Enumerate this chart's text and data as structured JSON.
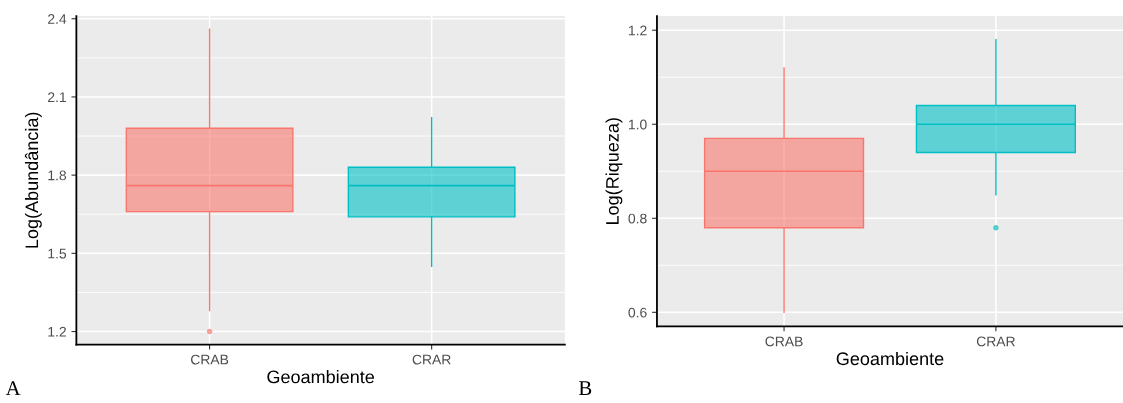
{
  "chart_data": [
    {
      "type": "box",
      "xlabel": "Geoambiente",
      "ylabel": "Log(Abundância)",
      "categories": [
        "CRAB",
        "CRAR"
      ],
      "colors": [
        "#f8766d",
        "#00bfc4"
      ],
      "ylim": [
        1.15,
        2.41
      ],
      "yticks": [
        1.2,
        1.5,
        1.8,
        2.1,
        2.4
      ],
      "grid": true,
      "annotations": [
        "A"
      ],
      "boxes": [
        {
          "low": 1.28,
          "q1": 1.66,
          "median": 1.76,
          "q3": 1.98,
          "high": 2.36,
          "outliers": [
            1.2
          ]
        },
        {
          "low": 1.45,
          "q1": 1.64,
          "median": 1.76,
          "q3": 1.83,
          "high": 2.02
        }
      ]
    },
    {
      "type": "box",
      "xlabel": "Geoambiente",
      "ylabel": "Log(Riqueza)",
      "categories": [
        "CRAB",
        "CRAR"
      ],
      "colors": [
        "#f8766d",
        "#00bfc4"
      ],
      "ylim": [
        0.57,
        1.23
      ],
      "yticks": [
        0.6,
        0.8,
        {
          "value": 1.0,
          "label": "1.0"
        },
        1.2
      ],
      "grid": true,
      "annotations": [
        "B"
      ],
      "boxes": [
        {
          "low": 0.6,
          "q1": 0.78,
          "median": 0.9,
          "q3": 0.97,
          "high": 1.12
        },
        {
          "low": 0.85,
          "q1": 0.94,
          "median": 1.0,
          "q3": 1.04,
          "high": 1.18,
          "outliers": [
            0.78
          ]
        }
      ]
    }
  ]
}
